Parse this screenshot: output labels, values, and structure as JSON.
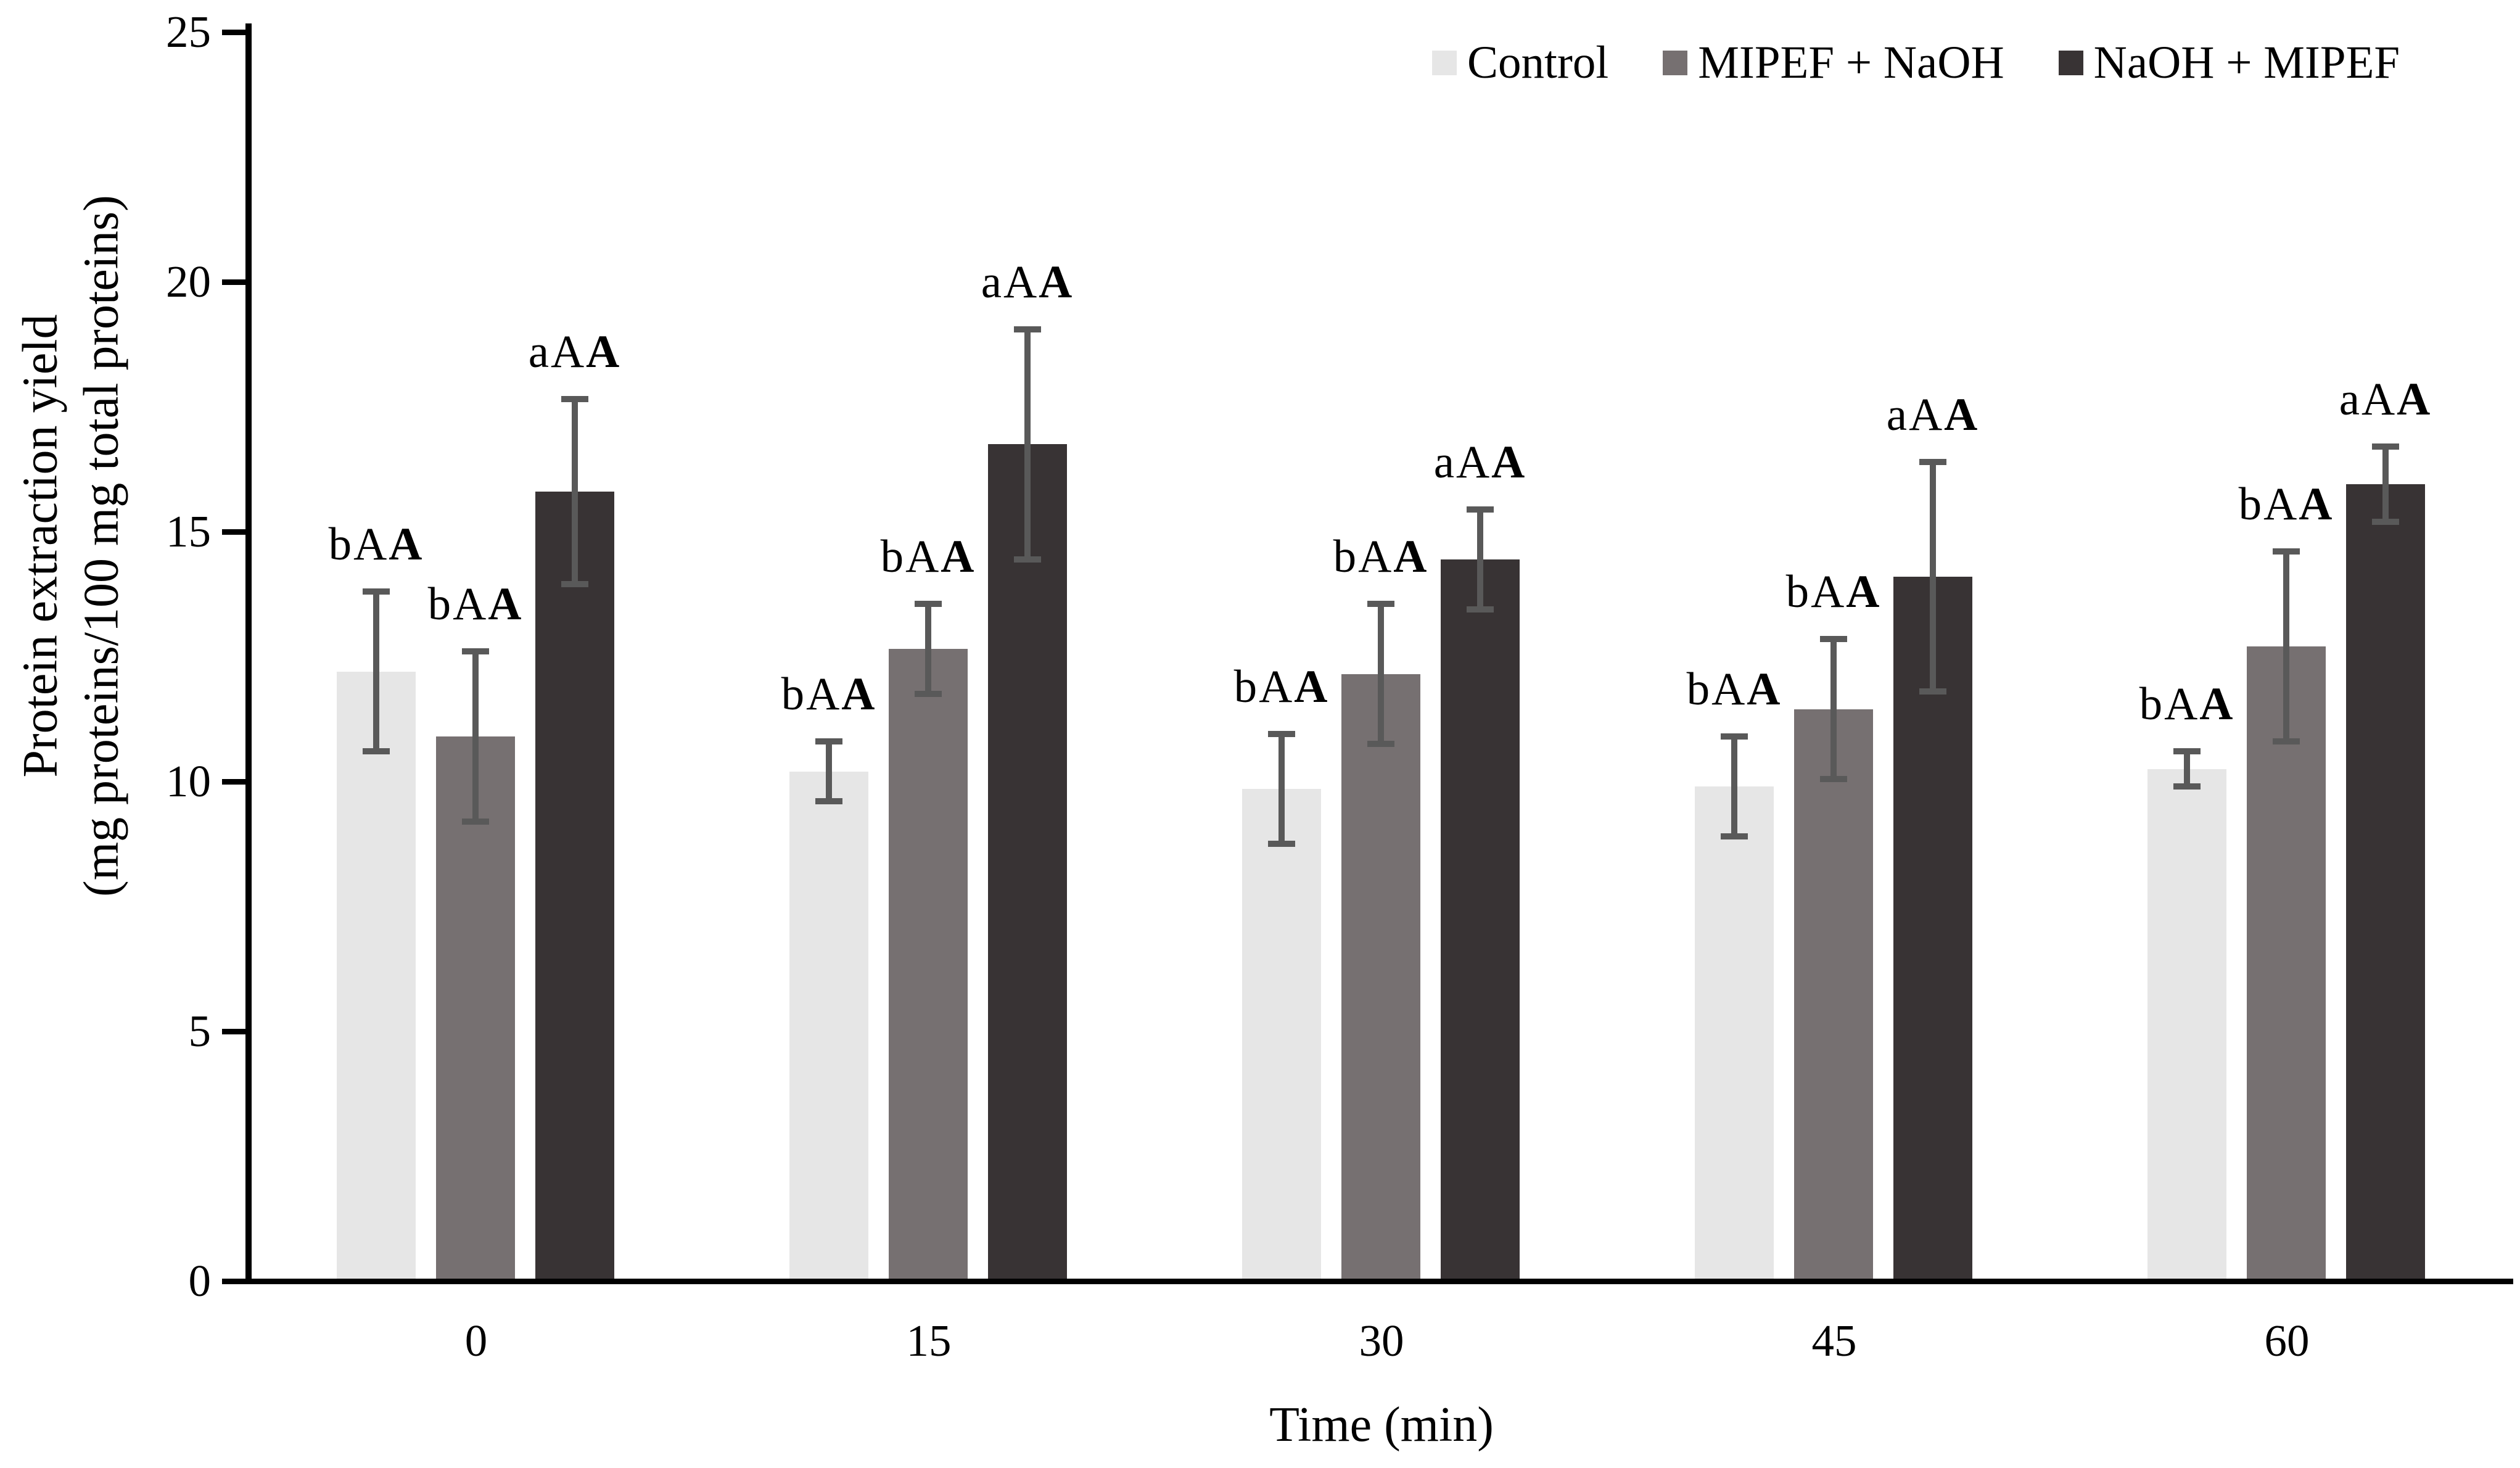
{
  "figure": {
    "background": "#ffffff",
    "text_color": "#000000"
  },
  "chart_data": {
    "type": "bar",
    "title": "",
    "xlabel": "Time (min)",
    "ylabel": "Protein extraction yield (mg proteins/100 mg total proteins)",
    "ylabel_lines": [
      "Protein extraction yield",
      "(mg proteins/100 mg total proteins)"
    ],
    "categories": [
      "0",
      "15",
      "30",
      "45",
      "60"
    ],
    "ylim": [
      0,
      25
    ],
    "y_tick_step": 5,
    "y_tick_labels": [
      "0",
      "5",
      "10",
      "15",
      "20",
      "25"
    ],
    "grid": false,
    "legend_position": "top-right",
    "axis_color": "#000000",
    "error_bar_color": "#595959",
    "series": [
      {
        "name": "Control",
        "color": "#e6e6e6",
        "values": [
          12.2,
          10.2,
          9.85,
          9.9,
          10.25
        ],
        "errors": [
          1.6,
          0.6,
          1.1,
          1.0,
          0.35
        ],
        "annotations": [
          "bAA",
          "bAA",
          "bAA",
          "bAA",
          "bAA"
        ]
      },
      {
        "name": "MIPEF + NaOH",
        "color": "#767071",
        "values": [
          10.9,
          12.65,
          12.15,
          11.45,
          12.7
        ],
        "errors": [
          1.7,
          0.9,
          1.4,
          1.4,
          1.9
        ],
        "annotations": [
          "bAA",
          "bAA",
          "bAA",
          "bAA",
          "bAA"
        ]
      },
      {
        "name": "NaOH + MIPEF",
        "color": "#383334",
        "values": [
          15.8,
          16.75,
          14.45,
          14.1,
          15.95
        ],
        "errors": [
          1.85,
          2.3,
          1.0,
          2.3,
          0.75
        ],
        "annotations": [
          "aAA",
          "aAA",
          "aAA",
          "aAA",
          "aAA"
        ]
      }
    ],
    "annotation_bold_last_char": true
  }
}
